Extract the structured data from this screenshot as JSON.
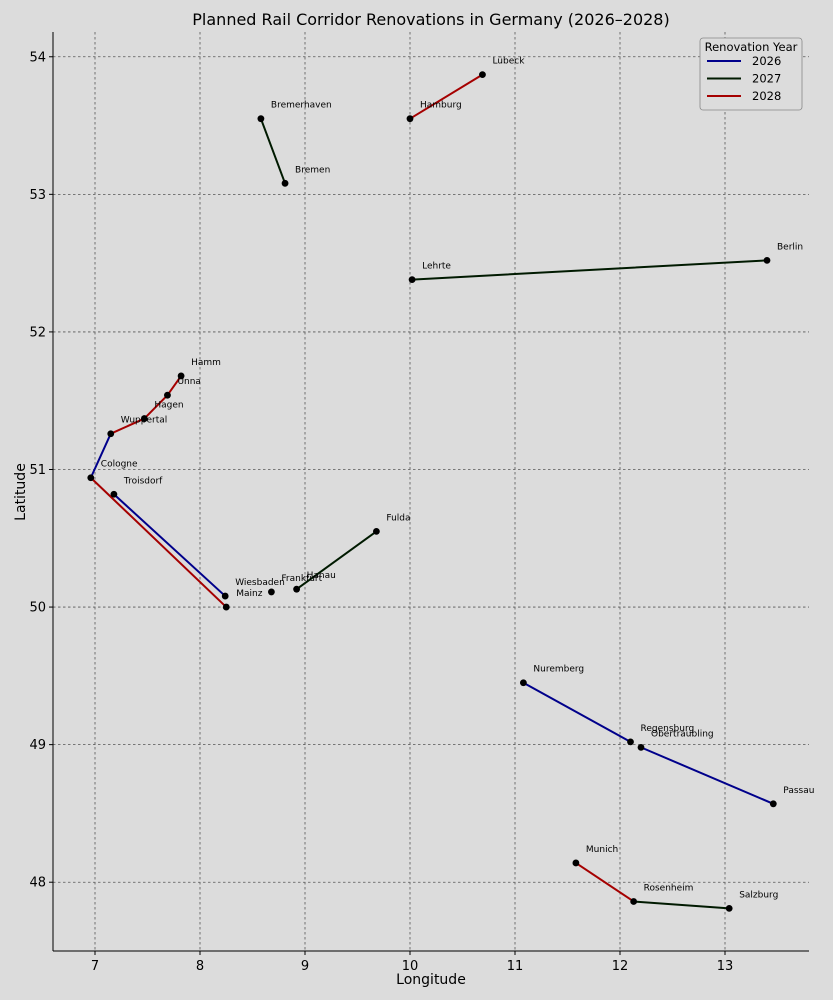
{
  "chart_data": {
    "type": "line",
    "title": "Planned Rail Corridor Renovations in Germany (2026–2028)",
    "xlabel": "Longitude",
    "ylabel": "Latitude",
    "xlim": [
      6.6,
      13.8
    ],
    "ylim": [
      47.5,
      54.18
    ],
    "xticks": [
      7,
      8,
      9,
      10,
      11,
      12,
      13
    ],
    "yticks": [
      48,
      49,
      50,
      51,
      52,
      53,
      54
    ],
    "grid": true,
    "legend": {
      "title": "Renovation Year",
      "position": "top-right",
      "entries": [
        {
          "name": "2026",
          "color": "#00008b"
        },
        {
          "name": "2027",
          "color": "#001a00"
        },
        {
          "name": "2028",
          "color": "#a50000"
        }
      ]
    },
    "cities": [
      {
        "name": "Lübeck",
        "lon": 10.69,
        "lat": 53.87
      },
      {
        "name": "Hamburg",
        "lon": 10.0,
        "lat": 53.55
      },
      {
        "name": "Bremerhaven",
        "lon": 8.58,
        "lat": 53.55
      },
      {
        "name": "Bremen",
        "lon": 8.81,
        "lat": 53.08
      },
      {
        "name": "Berlin",
        "lon": 13.4,
        "lat": 52.52
      },
      {
        "name": "Lehrte",
        "lon": 10.02,
        "lat": 52.38
      },
      {
        "name": "Hamm",
        "lon": 7.82,
        "lat": 51.68
      },
      {
        "name": "Unna",
        "lon": 7.69,
        "lat": 51.54
      },
      {
        "name": "Hagen",
        "lon": 7.47,
        "lat": 51.37
      },
      {
        "name": "Wuppertal",
        "lon": 7.15,
        "lat": 51.26
      },
      {
        "name": "Cologne",
        "lon": 6.96,
        "lat": 50.94
      },
      {
        "name": "Troisdorf",
        "lon": 7.18,
        "lat": 50.82
      },
      {
        "name": "Fulda",
        "lon": 9.68,
        "lat": 50.55
      },
      {
        "name": "Wiesbaden",
        "lon": 8.24,
        "lat": 50.08
      },
      {
        "name": "Mainz",
        "lon": 8.25,
        "lat": 50.0
      },
      {
        "name": "Frankfurt",
        "lon": 8.68,
        "lat": 50.11
      },
      {
        "name": "Hanau",
        "lon": 8.92,
        "lat": 50.13
      },
      {
        "name": "Nuremberg",
        "lon": 11.08,
        "lat": 49.45
      },
      {
        "name": "Regensburg",
        "lon": 12.1,
        "lat": 49.02
      },
      {
        "name": "Obertraubling",
        "lon": 12.2,
        "lat": 48.98
      },
      {
        "name": "Passau",
        "lon": 13.46,
        "lat": 48.57
      },
      {
        "name": "Munich",
        "lon": 11.58,
        "lat": 48.14
      },
      {
        "name": "Rosenheim",
        "lon": 12.13,
        "lat": 47.86
      },
      {
        "name": "Salzburg",
        "lon": 13.04,
        "lat": 47.81
      }
    ],
    "corridors": [
      {
        "year": "2026",
        "from": "Cologne",
        "to": "Wuppertal"
      },
      {
        "year": "2026",
        "from": "Troisdorf",
        "to": "Wiesbaden"
      },
      {
        "year": "2026",
        "from": "Nuremberg",
        "to": "Regensburg"
      },
      {
        "year": "2026",
        "from": "Obertraubling",
        "to": "Passau"
      },
      {
        "year": "2027",
        "from": "Bremerhaven",
        "to": "Bremen"
      },
      {
        "year": "2027",
        "from": "Lehrte",
        "to": "Berlin"
      },
      {
        "year": "2027",
        "from": "Hanau",
        "to": "Fulda"
      },
      {
        "year": "2027",
        "from": "Rosenheim",
        "to": "Salzburg"
      },
      {
        "year": "2028",
        "from": "Hamburg",
        "to": "Lübeck"
      },
      {
        "year": "2028",
        "from": "Wuppertal",
        "to": "Hagen"
      },
      {
        "year": "2028",
        "from": "Hagen",
        "to": "Unna"
      },
      {
        "year": "2028",
        "from": "Unna",
        "to": "Hamm"
      },
      {
        "year": "2028",
        "from": "Cologne",
        "to": "Mainz"
      },
      {
        "year": "2028",
        "from": "Munich",
        "to": "Rosenheim"
      }
    ]
  }
}
